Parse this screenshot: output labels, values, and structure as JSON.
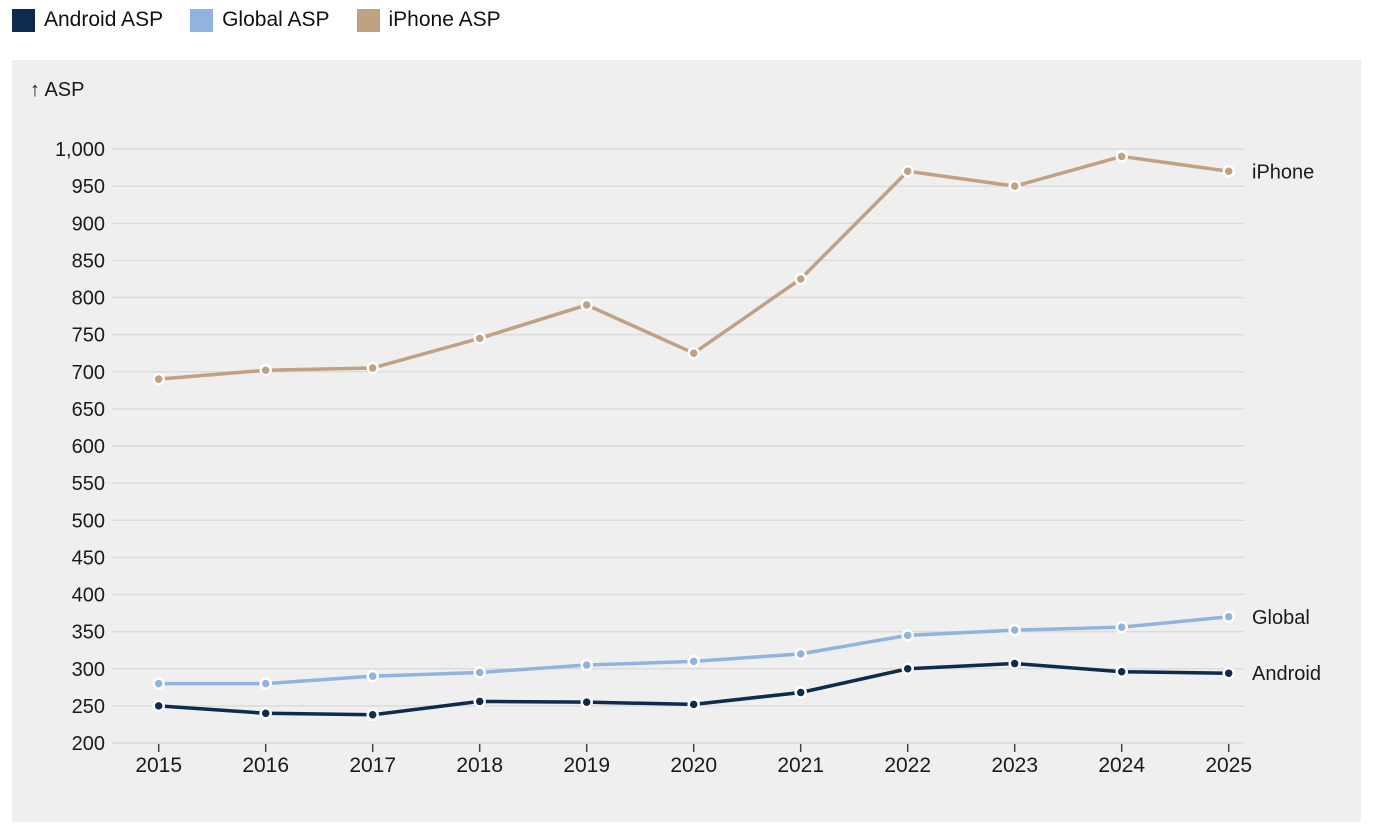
{
  "legend": {
    "items": [
      {
        "label": "Android ASP",
        "color": "#0e2a4d"
      },
      {
        "label": "Global ASP",
        "color": "#90b4dd"
      },
      {
        "label": "iPhone ASP",
        "color": "#c0a183"
      }
    ]
  },
  "chart_data": {
    "type": "line",
    "title": "",
    "axis_label": "↑ ASP",
    "xlabel": "",
    "ylabel": "ASP",
    "categories": [
      2015,
      2016,
      2017,
      2018,
      2019,
      2020,
      2021,
      2022,
      2023,
      2024,
      2025
    ],
    "series": [
      {
        "name": "Android",
        "legend_label": "Android ASP",
        "color": "#0e2a4d",
        "values": [
          250,
          240,
          238,
          256,
          255,
          252,
          268,
          300,
          307,
          296,
          294
        ]
      },
      {
        "name": "Global",
        "legend_label": "Global ASP",
        "color": "#90b4dd",
        "values": [
          280,
          280,
          290,
          295,
          305,
          310,
          320,
          345,
          352,
          356,
          370
        ]
      },
      {
        "name": "iPhone",
        "legend_label": "iPhone ASP",
        "color": "#c0a183",
        "values": [
          690,
          702,
          705,
          745,
          790,
          725,
          825,
          970,
          950,
          990,
          970
        ]
      }
    ],
    "ylim": [
      200,
      1000
    ],
    "yticks": [
      200,
      250,
      300,
      350,
      400,
      450,
      500,
      550,
      600,
      650,
      700,
      750,
      800,
      850,
      900,
      950,
      1000
    ],
    "grid": true,
    "legend_position": "top-left",
    "end_labels": true,
    "colors": {
      "plot_background": "#efefef",
      "gridline": "#dcdcdc",
      "tick_mark": "#444444",
      "text": "#1a1a1a",
      "marker_ring": "#ffffff"
    }
  }
}
